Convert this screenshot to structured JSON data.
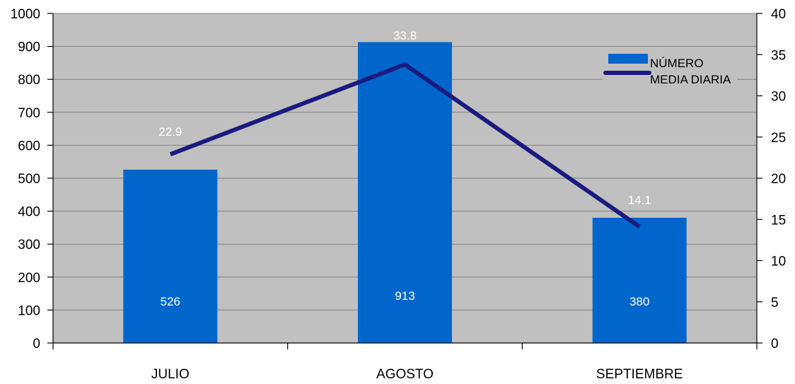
{
  "chart_data": {
    "type": "bar",
    "categories": [
      "JULIO",
      "AGOSTO",
      "SEPTIEMBRE"
    ],
    "series": [
      {
        "name": "NÚMERO",
        "type": "bar",
        "axis": "left",
        "values": [
          526,
          913,
          380
        ],
        "labels": [
          "526",
          "913",
          "380"
        ]
      },
      {
        "name": "MEDIA DIARIA",
        "type": "line",
        "axis": "right",
        "values": [
          22.9,
          33.8,
          14.1
        ],
        "labels": [
          "22.9",
          "33.8",
          "14.1"
        ]
      }
    ],
    "y_left": {
      "min": 0,
      "max": 1000,
      "step": 100
    },
    "y_right": {
      "min": 0,
      "max": 40,
      "step": 5
    },
    "grid": true,
    "legend_position": "top-right",
    "colors": {
      "plot_bg": "#c0c0c0",
      "bar": "#0066cc",
      "line": "#1a1a80",
      "grid": "#808080"
    }
  }
}
